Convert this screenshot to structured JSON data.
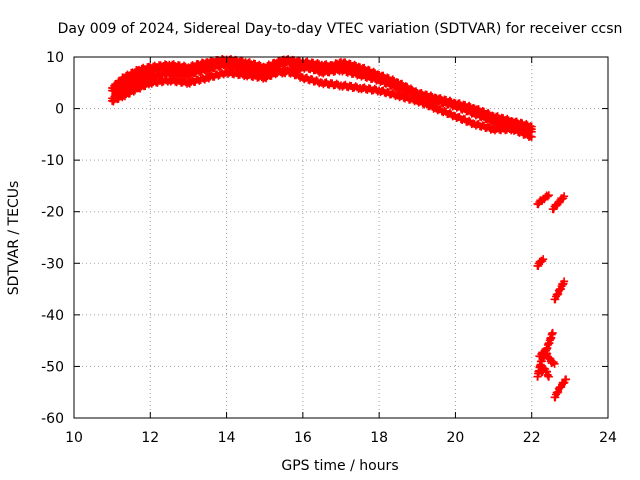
{
  "chart_data": {
    "type": "scatter",
    "title": "Day 009 of 2024, Sidereal Day-to-day VTEC variation (SDTVAR) for receiver ccsn",
    "xlabel": "GPS time / hours",
    "ylabel": "SDTVAR / TECUs",
    "xlim": [
      10,
      24
    ],
    "ylim": [
      -60,
      10
    ],
    "xticks": [
      10,
      12,
      14,
      16,
      18,
      20,
      22,
      24
    ],
    "yticks": [
      10,
      0,
      -10,
      -20,
      -30,
      -40,
      -50,
      -60
    ],
    "grid": true,
    "marker": "+",
    "color": "#ff0000",
    "series": [
      {
        "name": "track-1",
        "x": [
          11.0,
          11.3,
          11.7,
          12.0,
          12.5,
          13.0,
          13.5,
          14.0,
          14.5,
          15.0,
          15.5,
          16.0,
          16.5,
          17.0,
          17.5,
          18.0,
          18.5,
          19.0,
          19.5,
          20.0,
          20.5,
          21.0,
          21.5,
          22.0
        ],
        "y": [
          3.5,
          5.0,
          6.5,
          7.5,
          8.0,
          7.0,
          7.5,
          9.0,
          8.0,
          7.5,
          7.0,
          8.0,
          7.5,
          9.0,
          8.0,
          6.5,
          5.0,
          3.0,
          2.0,
          1.0,
          0.0,
          -2.0,
          -3.0,
          -4.0
        ]
      },
      {
        "name": "track-2",
        "x": [
          11.0,
          11.3,
          11.7,
          12.0,
          12.5,
          13.0,
          13.5,
          14.0,
          14.5,
          15.0,
          15.5,
          16.0,
          16.5,
          17.0,
          17.5,
          18.0,
          18.5,
          19.0,
          19.5,
          20.0,
          20.5,
          21.0,
          21.5,
          22.0
        ],
        "y": [
          2.0,
          3.5,
          5.0,
          6.0,
          7.0,
          6.5,
          8.0,
          8.5,
          7.5,
          7.0,
          9.0,
          8.5,
          7.0,
          7.5,
          6.5,
          5.5,
          4.0,
          3.0,
          1.5,
          0.5,
          -1.0,
          -2.5,
          -3.5,
          -4.5
        ]
      },
      {
        "name": "track-3",
        "x": [
          11.0,
          11.3,
          11.7,
          12.0,
          12.5,
          13.0,
          13.5,
          14.0,
          14.5,
          15.0,
          15.5,
          16.0,
          16.5,
          17.0,
          17.5,
          18.0,
          18.5,
          19.0,
          19.5,
          20.0,
          20.5,
          21.0,
          21.5,
          22.0
        ],
        "y": [
          1.5,
          2.5,
          4.0,
          5.0,
          5.5,
          5.0,
          6.0,
          7.0,
          6.5,
          6.0,
          7.5,
          6.0,
          5.0,
          4.5,
          4.0,
          3.5,
          2.5,
          1.5,
          0.0,
          -1.5,
          -3.0,
          -4.0,
          -4.0,
          -5.5
        ]
      },
      {
        "name": "track-4",
        "x": [
          11.0,
          11.3,
          11.7,
          12.0,
          12.5,
          13.0,
          13.5,
          14.0,
          14.5,
          15.0,
          15.5,
          16.0,
          16.5,
          17.0,
          17.5,
          18.0,
          18.5,
          19.0,
          19.5,
          20.0,
          20.5,
          21.0,
          21.5,
          22.0
        ],
        "y": [
          4.0,
          6.0,
          7.5,
          8.0,
          8.5,
          8.0,
          9.0,
          9.5,
          9.0,
          8.0,
          9.5,
          9.0,
          8.5,
          8.0,
          7.0,
          6.0,
          4.5,
          3.0,
          2.0,
          1.0,
          0.0,
          -1.5,
          -2.5,
          -3.5
        ]
      },
      {
        "name": "segment-a",
        "x": [
          22.15,
          22.3,
          22.45
        ],
        "y": [
          -18.5,
          -17.5,
          -16.8
        ]
      },
      {
        "name": "segment-b",
        "x": [
          22.55,
          22.7,
          22.85
        ],
        "y": [
          -19.5,
          -18.2,
          -17.0
        ]
      },
      {
        "name": "segment-c",
        "x": [
          22.15,
          22.25,
          22.3
        ],
        "y": [
          -30.5,
          -29.5,
          -29.2
        ]
      },
      {
        "name": "segment-d",
        "x": [
          22.6,
          22.75,
          22.85
        ],
        "y": [
          -37.0,
          -35.0,
          -33.5
        ]
      },
      {
        "name": "segment-e",
        "x": [
          22.15,
          22.25,
          22.35,
          22.45,
          22.55
        ],
        "y": [
          -52.0,
          -49.0,
          -47.5,
          -45.5,
          -43.5
        ]
      },
      {
        "name": "segment-f",
        "x": [
          22.2,
          22.35,
          22.5,
          22.6
        ],
        "y": [
          -48.0,
          -47.0,
          -49.0,
          -49.5
        ]
      },
      {
        "name": "segment-g",
        "x": [
          22.25,
          22.35,
          22.45
        ],
        "y": [
          -51.0,
          -50.5,
          -52.0
        ]
      },
      {
        "name": "segment-h",
        "x": [
          22.6,
          22.75,
          22.9
        ],
        "y": [
          -56.0,
          -54.0,
          -52.5
        ]
      }
    ]
  }
}
